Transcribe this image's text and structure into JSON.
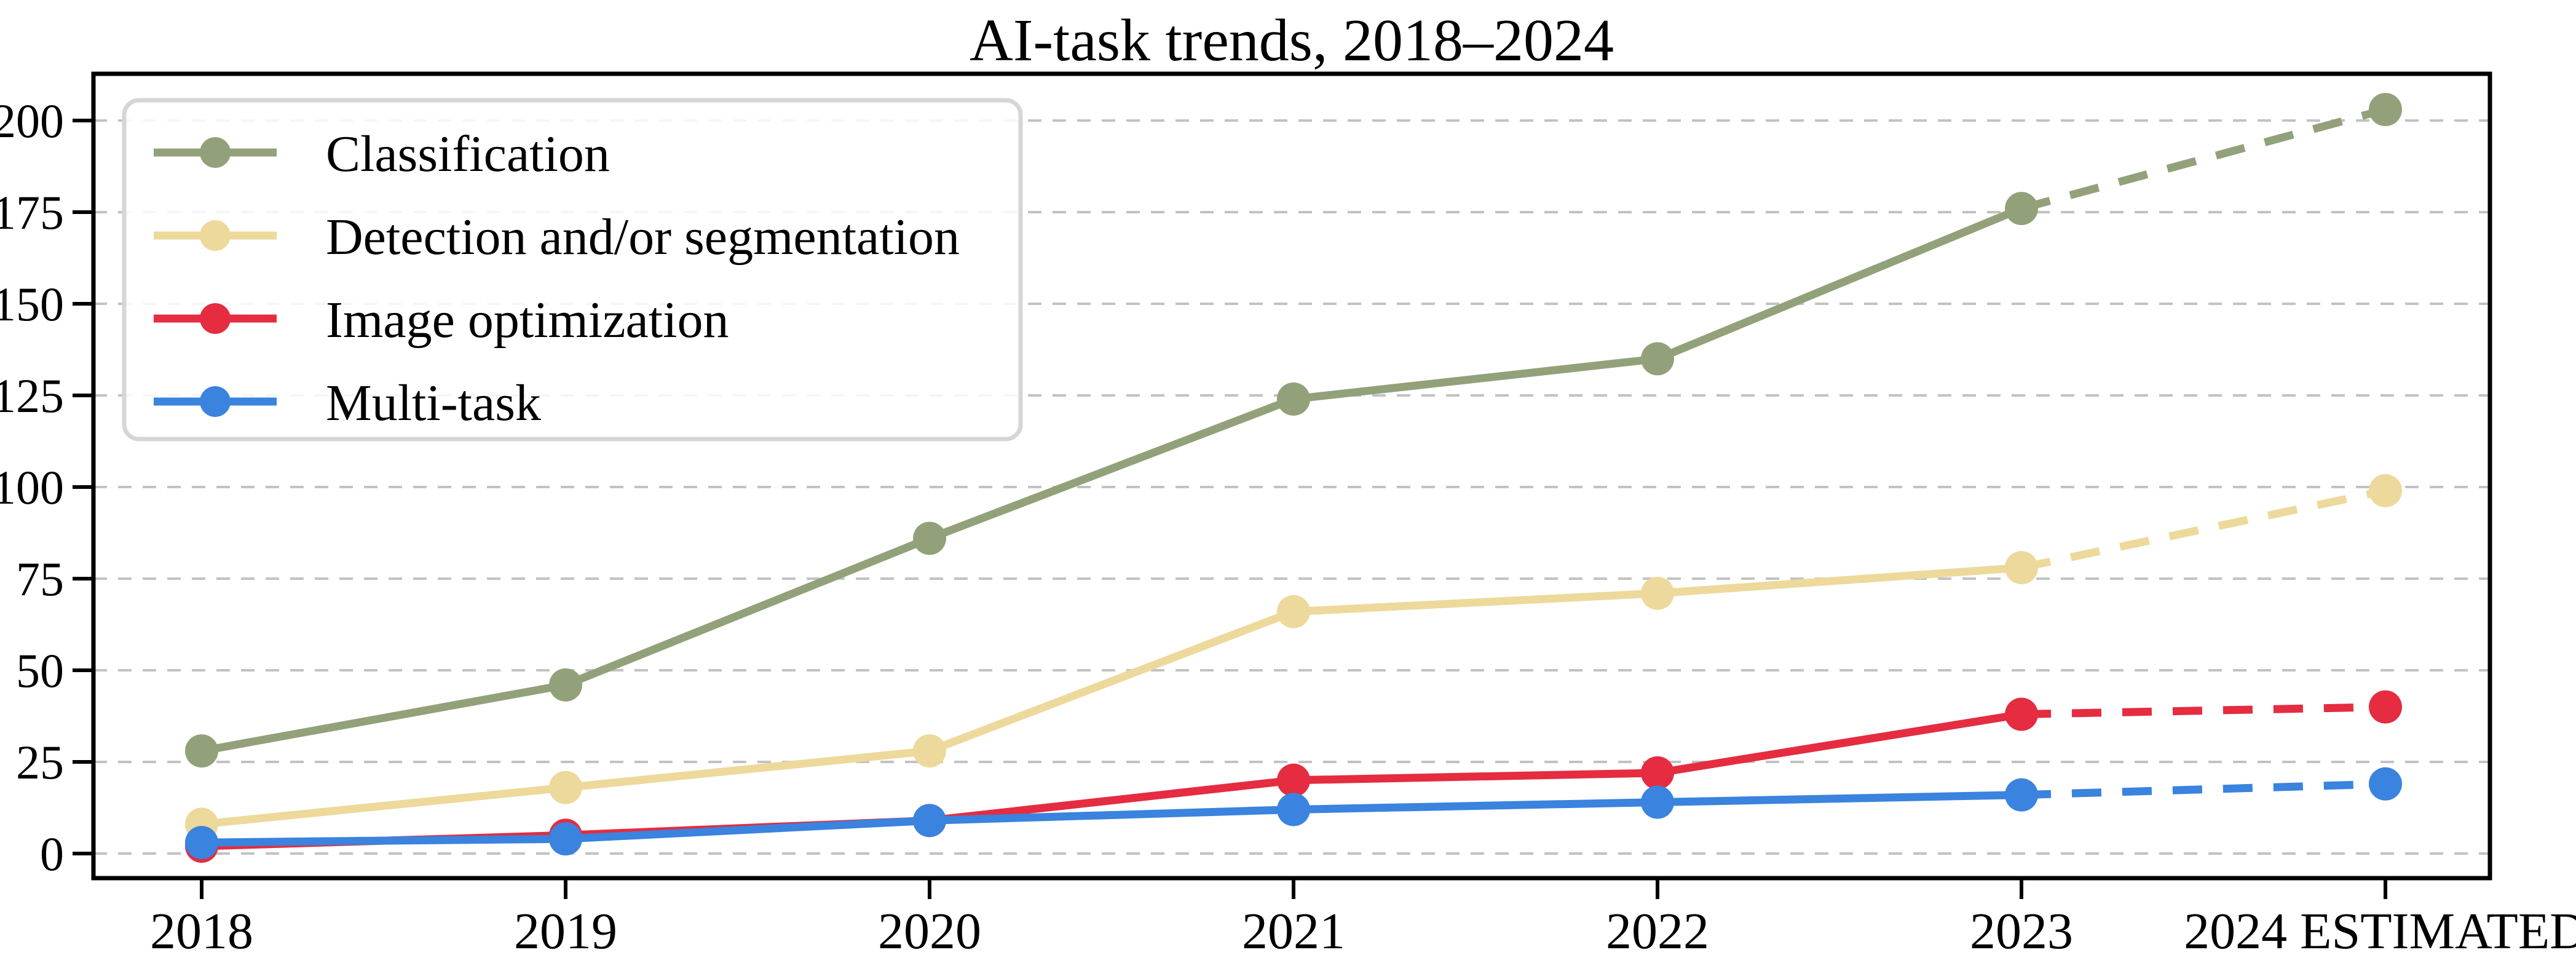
{
  "chart_data": {
    "type": "line",
    "title": "AI-task trends, 2018–2024",
    "xlabel": "",
    "ylabel": "",
    "categories": [
      "2018",
      "2019",
      "2020",
      "2021",
      "2022",
      "2023",
      "2024 ESTIMATED"
    ],
    "yticks": [
      "0",
      "25",
      "50",
      "75",
      "100",
      "125",
      "150",
      "175",
      "200"
    ],
    "ytick_values": [
      0,
      25,
      50,
      75,
      100,
      125,
      150,
      175,
      200
    ],
    "ylim": [
      -7,
      213
    ],
    "grid": "horizontal-dashed",
    "grid_color": "#c2c2c2",
    "spine_color": "#000000",
    "legend_position": "top-left",
    "legend_border_color": "#d6d6d6",
    "estimated_note": "last segment 2023 to 2024 drawn dashed (estimated)",
    "series": [
      {
        "name": "Classification",
        "color": "#93a17a",
        "values": [
          28,
          46,
          86,
          124,
          135,
          176,
          203
        ]
      },
      {
        "name": "Detection and/or segmentation",
        "color": "#edd99b",
        "values": [
          8,
          18,
          28,
          66,
          71,
          78,
          99
        ]
      },
      {
        "name": "Image optimization",
        "color": "#e52c40",
        "values": [
          2,
          5,
          9,
          20,
          22,
          38,
          40
        ]
      },
      {
        "name": "Multi-task",
        "color": "#3a83de",
        "values": [
          3,
          4,
          9,
          12,
          14,
          16,
          19
        ]
      }
    ]
  }
}
